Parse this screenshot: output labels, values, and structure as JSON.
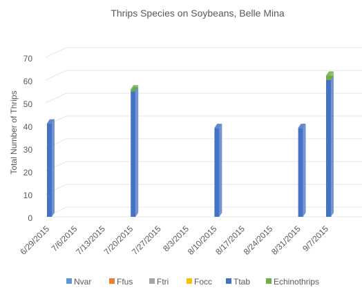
{
  "chart_data": {
    "type": "bar",
    "title": "Thrips Species on Soybeans, Belle Mina",
    "xlabel": "",
    "ylabel": "Total Number  of Thrips",
    "ylim": [
      0,
      70
    ],
    "yticks": [
      "0",
      "10",
      "20",
      "30",
      "40",
      "50",
      "60",
      "70"
    ],
    "stacked": true,
    "three_d": true,
    "legend_position": "bottom",
    "categories": [
      "6/29/2015",
      "7/6/2015",
      "7/13/2015",
      "7/20/2015",
      "7/27/2015",
      "8/3/2015",
      "8/10/2015",
      "8/17/2015",
      "8/24/2015",
      "8/31/2015",
      "9/7/2015"
    ],
    "series": [
      {
        "name": "Nvar",
        "color": "#5B9BD5",
        "values": [
          0,
          0,
          0,
          0,
          0,
          0,
          0,
          0,
          0,
          0,
          0
        ]
      },
      {
        "name": "Ffus",
        "color": "#ED7D31",
        "values": [
          0,
          0,
          0,
          0,
          0,
          0,
          0,
          0,
          0,
          0,
          0
        ]
      },
      {
        "name": "Ftri",
        "color": "#A5A5A5",
        "values": [
          0,
          0,
          0,
          0,
          0,
          0,
          0,
          0,
          0,
          0,
          0
        ]
      },
      {
        "name": "Focc",
        "color": "#FFC000",
        "values": [
          0,
          0,
          0,
          0,
          0,
          0,
          0,
          0,
          0,
          0,
          0
        ]
      },
      {
        "name": "Ttab",
        "color": "#4472C4",
        "values": [
          41,
          0,
          0,
          55,
          0,
          0,
          39,
          0,
          0,
          39,
          60
        ]
      },
      {
        "name": "Echinothrips",
        "color": "#70AD47",
        "values": [
          0,
          0,
          0,
          1,
          0,
          0,
          0,
          0,
          0,
          0,
          2
        ]
      }
    ]
  }
}
